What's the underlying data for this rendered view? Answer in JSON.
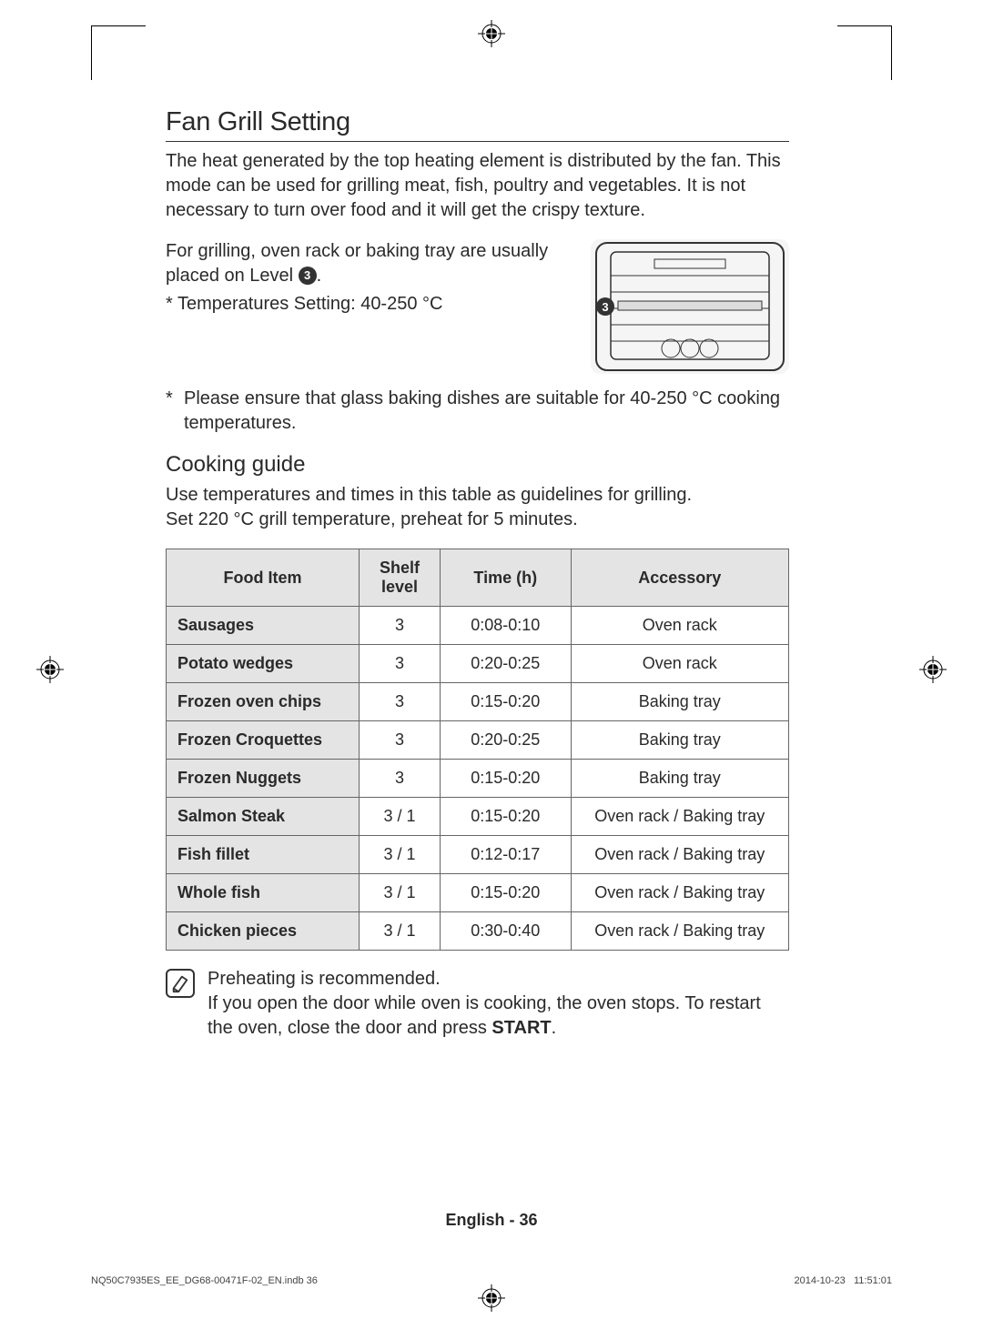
{
  "section": {
    "title": "Fan Grill Setting",
    "intro": "The heat generated by the top heating element is distributed by the fan. This mode can be used for grilling meat, fish, poultry and vegetables. It is not necessary to turn over food and it will get the crispy texture.",
    "placement_lead": "For grilling, oven rack or baking tray are usually placed on Level ",
    "placement_level": "3",
    "placement_tail": ".",
    "temp_note": "* Temperatures Setting: 40-250 °C",
    "glass_note": "Please ensure that glass baking dishes are suitable for 40-250 °C cooking temperatures.",
    "sub_title": "Cooking guide",
    "sub_text1": "Use temperatures and times in this table as guidelines for grilling.",
    "sub_text2": "Set 220 °C grill temperature, preheat for 5 minutes.",
    "tip1": "Preheating is recommended.",
    "tip2_a": "If you open the door while oven is cooking, the oven stops. To restart the oven, close the door and press ",
    "tip2_b": "START",
    "tip2_c": "."
  },
  "table": {
    "headers": [
      "Food Item",
      "Shelf level",
      "Time (h)",
      "Accessory"
    ],
    "col_widths": [
      "31%",
      "13%",
      "21%",
      "35%"
    ],
    "rows": [
      [
        "Sausages",
        "3",
        "0:08-0:10",
        "Oven rack"
      ],
      [
        "Potato wedges",
        "3",
        "0:20-0:25",
        "Oven rack"
      ],
      [
        "Frozen oven chips",
        "3",
        "0:15-0:20",
        "Baking tray"
      ],
      [
        "Frozen Croquettes",
        "3",
        "0:20-0:25",
        "Baking tray"
      ],
      [
        "Frozen Nuggets",
        "3",
        "0:15-0:20",
        "Baking tray"
      ],
      [
        "Salmon Steak",
        "3 / 1",
        "0:15-0:20",
        "Oven rack / Baking tray"
      ],
      [
        "Fish fillet",
        "3 / 1",
        "0:12-0:17",
        "Oven rack / Baking tray"
      ],
      [
        "Whole fish",
        "3 / 1",
        "0:15-0:20",
        "Oven rack / Baking tray"
      ],
      [
        "Chicken pieces",
        "3 / 1",
        "0:30-0:40",
        "Oven rack / Baking tray"
      ]
    ]
  },
  "footer": {
    "page": "English - 36",
    "file": "NQ50C7935ES_EE_DG68-00471F-02_EN.indb   36",
    "date": "2014-10-23",
    "time": "11:51:01"
  },
  "diagram": {
    "badge": "3",
    "rack_lines": 5
  },
  "colors": {
    "header_bg": "#e4e4e4",
    "border": "#666666",
    "text": "#2a2a2a"
  }
}
